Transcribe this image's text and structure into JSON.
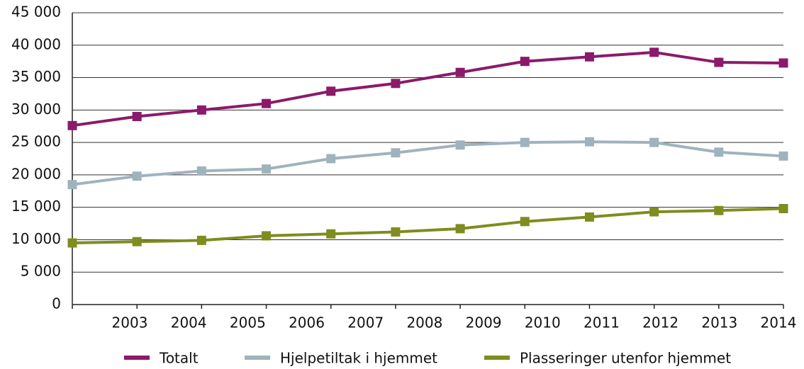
{
  "chart_data": {
    "type": "line",
    "categories": [
      "2003",
      "2004",
      "2005",
      "2006",
      "2007",
      "2008",
      "2009",
      "2010",
      "2011",
      "2012",
      "2013",
      "2014"
    ],
    "series": [
      {
        "name": "Totalt",
        "color": "#8b1a6b",
        "values": [
          27600,
          29000,
          30000,
          31000,
          32900,
          34100,
          35800,
          37500,
          38200,
          38900,
          37350,
          37250
        ]
      },
      {
        "name": "Hjelpetiltak i hjemmet",
        "color": "#9fb3bd",
        "values": [
          18500,
          19800,
          20600,
          20900,
          22500,
          23400,
          24600,
          25000,
          25100,
          25000,
          23500,
          22900
        ]
      },
      {
        "name": "Plasseringer utenfor hjemmet",
        "color": "#7f8c1f",
        "values": [
          9500,
          9700,
          9900,
          10600,
          10900,
          11200,
          11700,
          12800,
          13500,
          14300,
          14500,
          14800
        ]
      }
    ],
    "ylim": [
      0,
      45000
    ],
    "yticks": [
      0,
      {
        "value": 5000,
        "label": "5 000"
      },
      {
        "value": 10000,
        "label": "10 000"
      },
      {
        "value": 15000,
        "label": "15 000"
      },
      {
        "value": 20000,
        "label": "20 000"
      },
      {
        "value": 25000,
        "label": "25 000"
      },
      {
        "value": 30000,
        "label": "30 000"
      },
      {
        "value": 35000,
        "label": "35 000"
      },
      {
        "value": 40000,
        "label": "40 000"
      },
      {
        "value": 45000,
        "label": "45 000"
      }
    ],
    "grid": true,
    "legend": "bottom"
  }
}
